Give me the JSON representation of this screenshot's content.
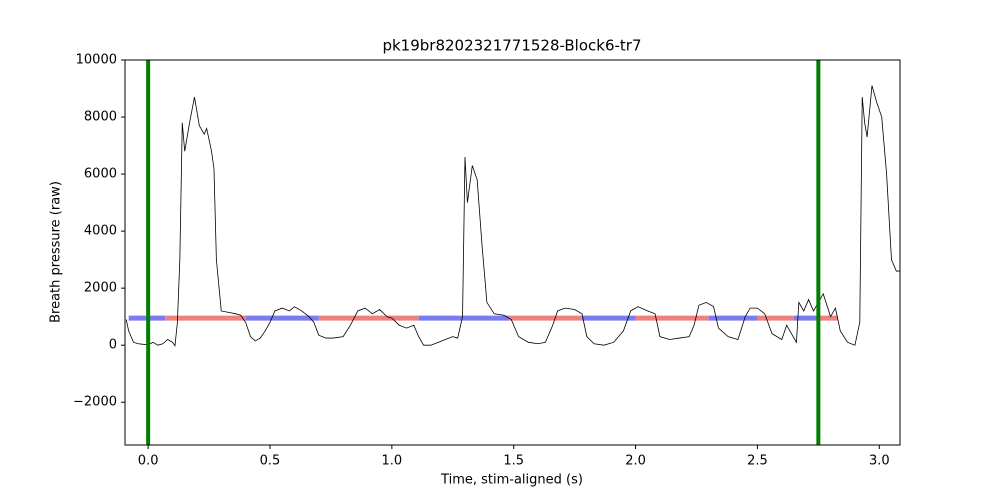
{
  "chart_data": {
    "type": "line",
    "title": "pk19br8202321771528-Block6-tr7",
    "xlabel": "Time, stim-aligned (s)",
    "ylabel": "Breath pressure (raw)",
    "xlim": [
      -0.095,
      3.085
    ],
    "ylim": [
      -3500,
      10000
    ],
    "xticks": [
      {
        "value": 0,
        "label": "0.0"
      },
      {
        "value": 0.5,
        "label": "0.5"
      },
      {
        "value": 1,
        "label": "1.0"
      },
      {
        "value": 1.5,
        "label": "1.5"
      },
      {
        "value": 2,
        "label": "2.0"
      },
      {
        "value": 2.5,
        "label": "2.5"
      },
      {
        "value": 3,
        "label": "3.0"
      }
    ],
    "yticks": [
      {
        "value": -2000,
        "label": "−2000"
      },
      0,
      2000,
      4000,
      6000,
      8000,
      10000
    ],
    "x": [
      -0.09,
      -0.08,
      -0.06,
      -0.04,
      -0.02,
      0.0,
      0.02,
      0.04,
      0.06,
      0.08,
      0.1,
      0.11,
      0.12,
      0.13,
      0.14,
      0.15,
      0.17,
      0.19,
      0.21,
      0.23,
      0.24,
      0.26,
      0.27,
      0.28,
      0.3,
      0.33,
      0.36,
      0.38,
      0.4,
      0.42,
      0.44,
      0.46,
      0.48,
      0.5,
      0.52,
      0.55,
      0.58,
      0.6,
      0.63,
      0.66,
      0.68,
      0.7,
      0.73,
      0.76,
      0.8,
      0.83,
      0.86,
      0.89,
      0.92,
      0.95,
      0.98,
      1.0,
      1.03,
      1.06,
      1.09,
      1.11,
      1.13,
      1.16,
      1.19,
      1.22,
      1.25,
      1.27,
      1.29,
      1.3,
      1.31,
      1.33,
      1.35,
      1.37,
      1.39,
      1.42,
      1.46,
      1.49,
      1.52,
      1.56,
      1.6,
      1.63,
      1.66,
      1.68,
      1.71,
      1.75,
      1.78,
      1.8,
      1.83,
      1.87,
      1.91,
      1.95,
      1.98,
      2.01,
      2.05,
      2.08,
      2.1,
      2.14,
      2.18,
      2.22,
      2.24,
      2.26,
      2.29,
      2.32,
      2.34,
      2.38,
      2.42,
      2.45,
      2.47,
      2.5,
      2.53,
      2.56,
      2.6,
      2.62,
      2.64,
      2.66,
      2.67,
      2.69,
      2.71,
      2.73,
      2.75,
      2.77,
      2.8,
      2.82,
      2.84,
      2.87,
      2.9,
      2.92,
      2.93,
      2.94,
      2.95,
      2.97,
      2.99,
      3.01,
      3.03,
      3.05,
      3.07,
      3.085
    ],
    "series": [
      {
        "color": "#000000",
        "values": [
          900,
          500,
          100,
          50,
          30,
          20,
          100,
          0,
          50,
          200,
          100,
          -20,
          800,
          3000,
          7800,
          6800,
          7800,
          8700,
          7700,
          7400,
          7600,
          6800,
          6200,
          3000,
          1200,
          1150,
          1100,
          1050,
          800,
          300,
          150,
          250,
          500,
          800,
          1200,
          1300,
          1200,
          1350,
          1200,
          1000,
          800,
          350,
          250,
          250,
          300,
          700,
          1200,
          1300,
          1100,
          1250,
          1000,
          950,
          700,
          600,
          700,
          300,
          0,
          0,
          100,
          200,
          300,
          250,
          1000,
          6600,
          5000,
          6300,
          5800,
          3500,
          1500,
          1100,
          1050,
          900,
          300,
          100,
          50,
          100,
          700,
          1200,
          1300,
          1250,
          1100,
          300,
          50,
          0,
          100,
          500,
          1200,
          1350,
          1200,
          1100,
          300,
          200,
          250,
          300,
          700,
          1400,
          1500,
          1350,
          600,
          300,
          200,
          1000,
          1300,
          1300,
          1100,
          400,
          200,
          700,
          400,
          100,
          1500,
          1200,
          1600,
          1200,
          1500,
          1800,
          1000,
          1300,
          500,
          100,
          0,
          800,
          8700,
          7800,
          7300,
          9100,
          8500,
          8000,
          6000,
          3000,
          2600,
          2600
        ]
      }
    ],
    "intervals": [
      {
        "x0": -0.08,
        "x1": 0.07,
        "y": 950,
        "color": "#7b7bf0"
      },
      {
        "x0": 0.07,
        "x1": 0.4,
        "y": 950,
        "color": "#f08080"
      },
      {
        "x0": 0.4,
        "x1": 0.7,
        "y": 950,
        "color": "#7b7bf0"
      },
      {
        "x0": 0.7,
        "x1": 1.11,
        "y": 950,
        "color": "#f08080"
      },
      {
        "x0": 1.11,
        "x1": 1.48,
        "y": 950,
        "color": "#7b7bf0"
      },
      {
        "x0": 1.48,
        "x1": 1.78,
        "y": 950,
        "color": "#f08080"
      },
      {
        "x0": 1.78,
        "x1": 2.0,
        "y": 950,
        "color": "#7b7bf0"
      },
      {
        "x0": 2.0,
        "x1": 2.3,
        "y": 950,
        "color": "#f08080"
      },
      {
        "x0": 2.3,
        "x1": 2.5,
        "y": 950,
        "color": "#7b7bf0"
      },
      {
        "x0": 2.5,
        "x1": 2.65,
        "y": 950,
        "color": "#f08080"
      },
      {
        "x0": 2.65,
        "x1": 2.75,
        "y": 950,
        "color": "#7b7bf0"
      },
      {
        "x0": 2.75,
        "x1": 2.83,
        "y": 950,
        "color": "#f08080"
      }
    ],
    "vlines": [
      {
        "x": 0,
        "color": "#008000"
      },
      {
        "x": 2.75,
        "color": "#008000"
      }
    ]
  }
}
